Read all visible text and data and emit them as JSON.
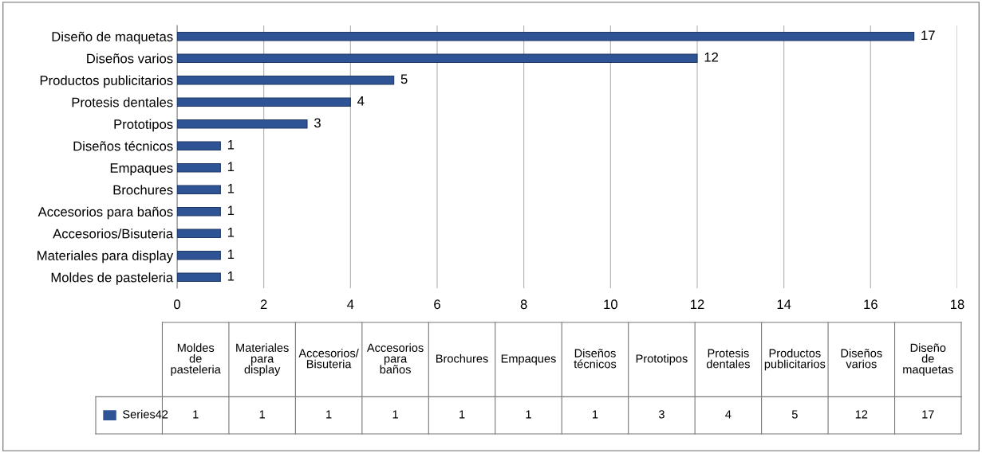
{
  "chart_data": [
    {
      "type": "bar",
      "orientation": "horizontal",
      "categories": [
        "Diseño de maquetas",
        "Diseños varios",
        "Productos publicitarios",
        "Protesis dentales",
        "Prototipos",
        "Diseños técnicos",
        "Empaques",
        "Brochures",
        "Accesorios para baños",
        "Accesorios/Bisuteria",
        "Materiales para display",
        "Moldes de pasteleria"
      ],
      "series": [
        {
          "color": "#2f5496",
          "values": [
            17,
            12,
            5,
            4,
            3,
            1,
            1,
            1,
            1,
            1,
            1,
            1
          ]
        }
      ],
      "xlim": [
        0,
        18
      ],
      "xticks": [
        0,
        2,
        4,
        6,
        8,
        10,
        12,
        14,
        16,
        18
      ],
      "grid": "x",
      "data_labels": true
    },
    {
      "type": "other",
      "categories": [
        "Moldes de pasteleria",
        "Materiales para display",
        "Accesorios/Bisuteria",
        "Accesorios para baños",
        "Brochures",
        "Empaques",
        "Diseños técnicos",
        "Prototipos",
        "Protesis dentales",
        "Productos publicitarios",
        "Diseños varios",
        "Diseño de maquetas"
      ],
      "series": [
        {
          "name": "Series42",
          "color": "#2f5496",
          "values": [
            1,
            1,
            1,
            1,
            1,
            1,
            1,
            3,
            4,
            5,
            12,
            17
          ]
        }
      ],
      "data_labels": true
    }
  ]
}
